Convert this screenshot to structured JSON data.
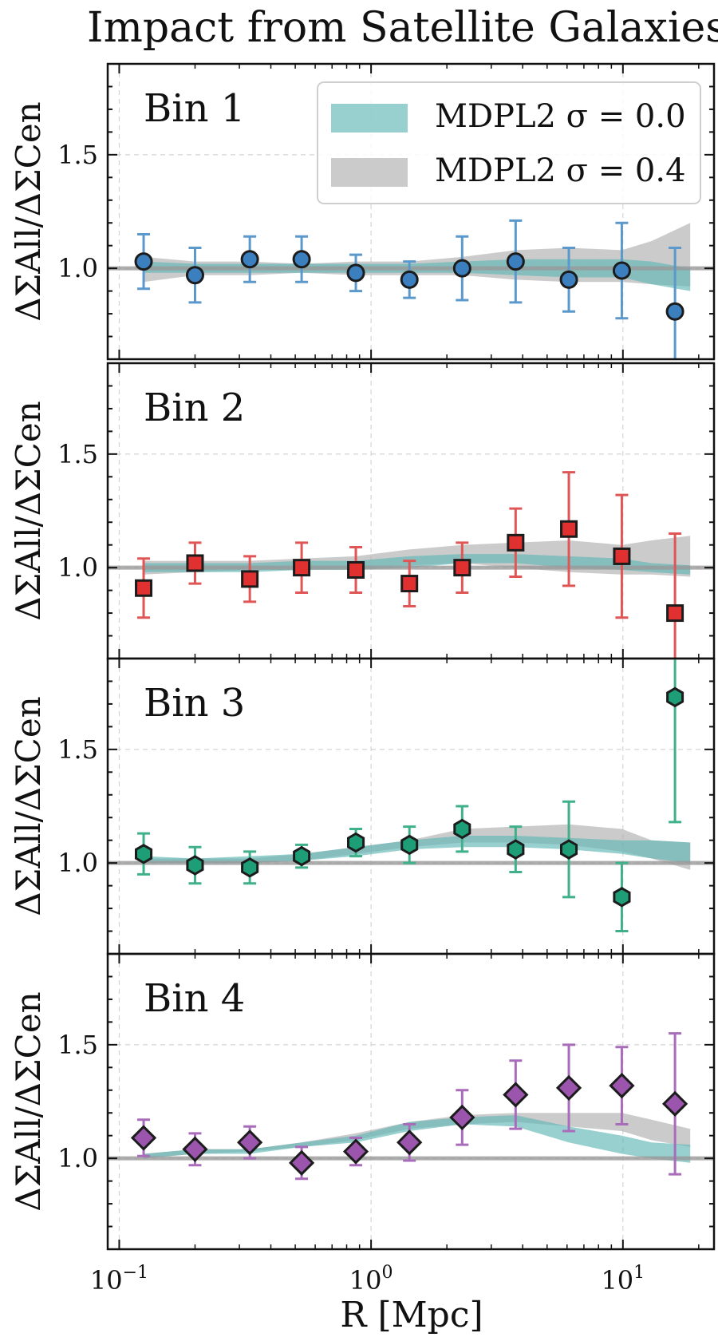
{
  "title": "Impact from Satellite Galaxies",
  "xlabel": "R [Mpc]",
  "ylabel": "ΔΣAll/ΔΣCen",
  "legend": [
    {
      "label": "MDPL2 σ = 0.0",
      "color": "#5fb7b6"
    },
    {
      "label": "MDPL2 σ = 0.4",
      "color": "#a9a9a9"
    }
  ],
  "chart_data": {
    "type": "scatter",
    "title": "Impact from Satellite Galaxies",
    "xlabel": "R [Mpc]",
    "ylabel": "ΔΣAll/ΔΣCen",
    "xscale": "log",
    "xlim": [
      0.09,
      23
    ],
    "ylim": [
      0.6,
      1.9
    ],
    "x_ticks": [
      "10^-1",
      "10^0",
      "10^1"
    ],
    "y_ticks": [
      "1.0",
      "1.5"
    ],
    "grid": true,
    "legend_position": "top-right",
    "reference_line": 1.0,
    "x": [
      0.125,
      0.2,
      0.33,
      0.53,
      0.87,
      1.42,
      2.3,
      3.75,
      6.1,
      9.9,
      16.1
    ],
    "model_x": [
      0.125,
      0.2,
      0.33,
      0.53,
      0.87,
      1.42,
      2.3,
      3.75,
      6.1,
      9.9,
      13.0,
      18.5
    ],
    "panels": [
      {
        "label": "Bin 1",
        "marker": "circle",
        "color": "#3c7fbf",
        "errcolor": "#5b98cc",
        "y": [
          1.03,
          0.97,
          1.04,
          1.04,
          0.98,
          0.95,
          1.0,
          1.03,
          0.95,
          0.99,
          0.81
        ],
        "yerr": [
          0.12,
          0.12,
          0.1,
          0.1,
          0.08,
          0.08,
          0.14,
          0.18,
          0.14,
          0.21,
          0.28
        ],
        "band_sigma0": {
          "lo": [
            0.98,
            0.98,
            0.98,
            0.98,
            0.98,
            0.98,
            0.98,
            0.97,
            0.96,
            0.96,
            0.93,
            0.9
          ],
          "hi": [
            1.03,
            1.02,
            1.02,
            1.02,
            1.02,
            1.02,
            1.03,
            1.04,
            1.04,
            1.04,
            1.03,
            1.0
          ]
        },
        "band_sigma4": {
          "lo": [
            0.94,
            0.97,
            0.97,
            0.98,
            0.97,
            0.97,
            0.97,
            0.95,
            0.94,
            0.94,
            0.93,
            0.92
          ],
          "hi": [
            1.05,
            1.03,
            1.03,
            1.02,
            1.03,
            1.03,
            1.05,
            1.08,
            1.09,
            1.08,
            1.12,
            1.2
          ]
        }
      },
      {
        "label": "Bin 2",
        "marker": "square",
        "color": "#e03030",
        "errcolor": "#e05656",
        "y": [
          0.91,
          1.02,
          0.95,
          1.0,
          0.99,
          0.93,
          1.0,
          1.11,
          1.17,
          1.05,
          0.8
        ],
        "yerr": [
          0.13,
          0.09,
          0.1,
          0.11,
          0.1,
          0.1,
          0.11,
          0.15,
          0.25,
          0.27,
          0.35
        ],
        "band_sigma0": {
          "lo": [
            0.98,
            0.98,
            0.98,
            0.99,
            0.99,
            1.0,
            1.02,
            1.02,
            1.0,
            0.99,
            0.98,
            0.97
          ],
          "hi": [
            1.02,
            1.02,
            1.02,
            1.03,
            1.03,
            1.05,
            1.06,
            1.06,
            1.05,
            1.04,
            1.02,
            1.01
          ]
        },
        "band_sigma4": {
          "lo": [
            0.97,
            0.98,
            0.99,
            0.99,
            1.0,
            1.01,
            1.02,
            1.0,
            0.98,
            0.97,
            0.97,
            0.96
          ],
          "hi": [
            1.03,
            1.03,
            1.03,
            1.04,
            1.05,
            1.08,
            1.1,
            1.11,
            1.12,
            1.1,
            1.12,
            1.14
          ]
        }
      },
      {
        "label": "Bin 3",
        "marker": "hexagon",
        "color": "#1e9e76",
        "errcolor": "#3fb08a",
        "y": [
          1.04,
          0.99,
          0.98,
          1.03,
          1.09,
          1.08,
          1.15,
          1.06,
          1.06,
          0.85,
          1.73
        ],
        "yerr": [
          0.09,
          0.08,
          0.07,
          0.05,
          0.06,
          0.08,
          0.1,
          0.1,
          0.21,
          0.15,
          0.55
        ],
        "band_sigma0": {
          "lo": [
            1.0,
            1.0,
            1.0,
            1.01,
            1.03,
            1.06,
            1.07,
            1.07,
            1.06,
            1.04,
            1.02,
            1.0
          ],
          "hi": [
            1.03,
            1.02,
            1.03,
            1.04,
            1.07,
            1.1,
            1.12,
            1.12,
            1.11,
            1.1,
            1.1,
            1.09
          ]
        },
        "band_sigma4": {
          "lo": [
            1.0,
            1.0,
            1.0,
            1.01,
            1.04,
            1.07,
            1.09,
            1.09,
            1.08,
            1.05,
            1.02,
            0.97
          ],
          "hi": [
            1.02,
            1.02,
            1.02,
            1.04,
            1.07,
            1.1,
            1.15,
            1.16,
            1.17,
            1.15,
            1.1,
            1.09
          ]
        }
      },
      {
        "label": "Bin 4",
        "marker": "diamond",
        "color": "#9b55ad",
        "errcolor": "#a96cbb",
        "y": [
          1.09,
          1.04,
          1.07,
          0.98,
          1.03,
          1.07,
          1.18,
          1.28,
          1.31,
          1.32,
          1.24
        ],
        "yerr": [
          0.08,
          0.07,
          0.07,
          0.07,
          0.06,
          0.08,
          0.12,
          0.15,
          0.19,
          0.17,
          0.31
        ],
        "band_sigma0": {
          "lo": [
            1.0,
            1.02,
            1.02,
            1.05,
            1.07,
            1.12,
            1.15,
            1.14,
            1.07,
            1.02,
            1.0,
            0.98
          ],
          "hi": [
            1.02,
            1.04,
            1.04,
            1.07,
            1.1,
            1.16,
            1.18,
            1.19,
            1.14,
            1.1,
            1.07,
            1.06
          ]
        },
        "band_sigma4": {
          "lo": [
            1.0,
            1.02,
            1.03,
            1.05,
            1.08,
            1.13,
            1.15,
            1.16,
            1.14,
            1.12,
            1.08,
            1.05
          ],
          "hi": [
            1.02,
            1.04,
            1.04,
            1.07,
            1.11,
            1.16,
            1.19,
            1.2,
            1.2,
            1.2,
            1.17,
            1.13
          ]
        }
      }
    ]
  }
}
